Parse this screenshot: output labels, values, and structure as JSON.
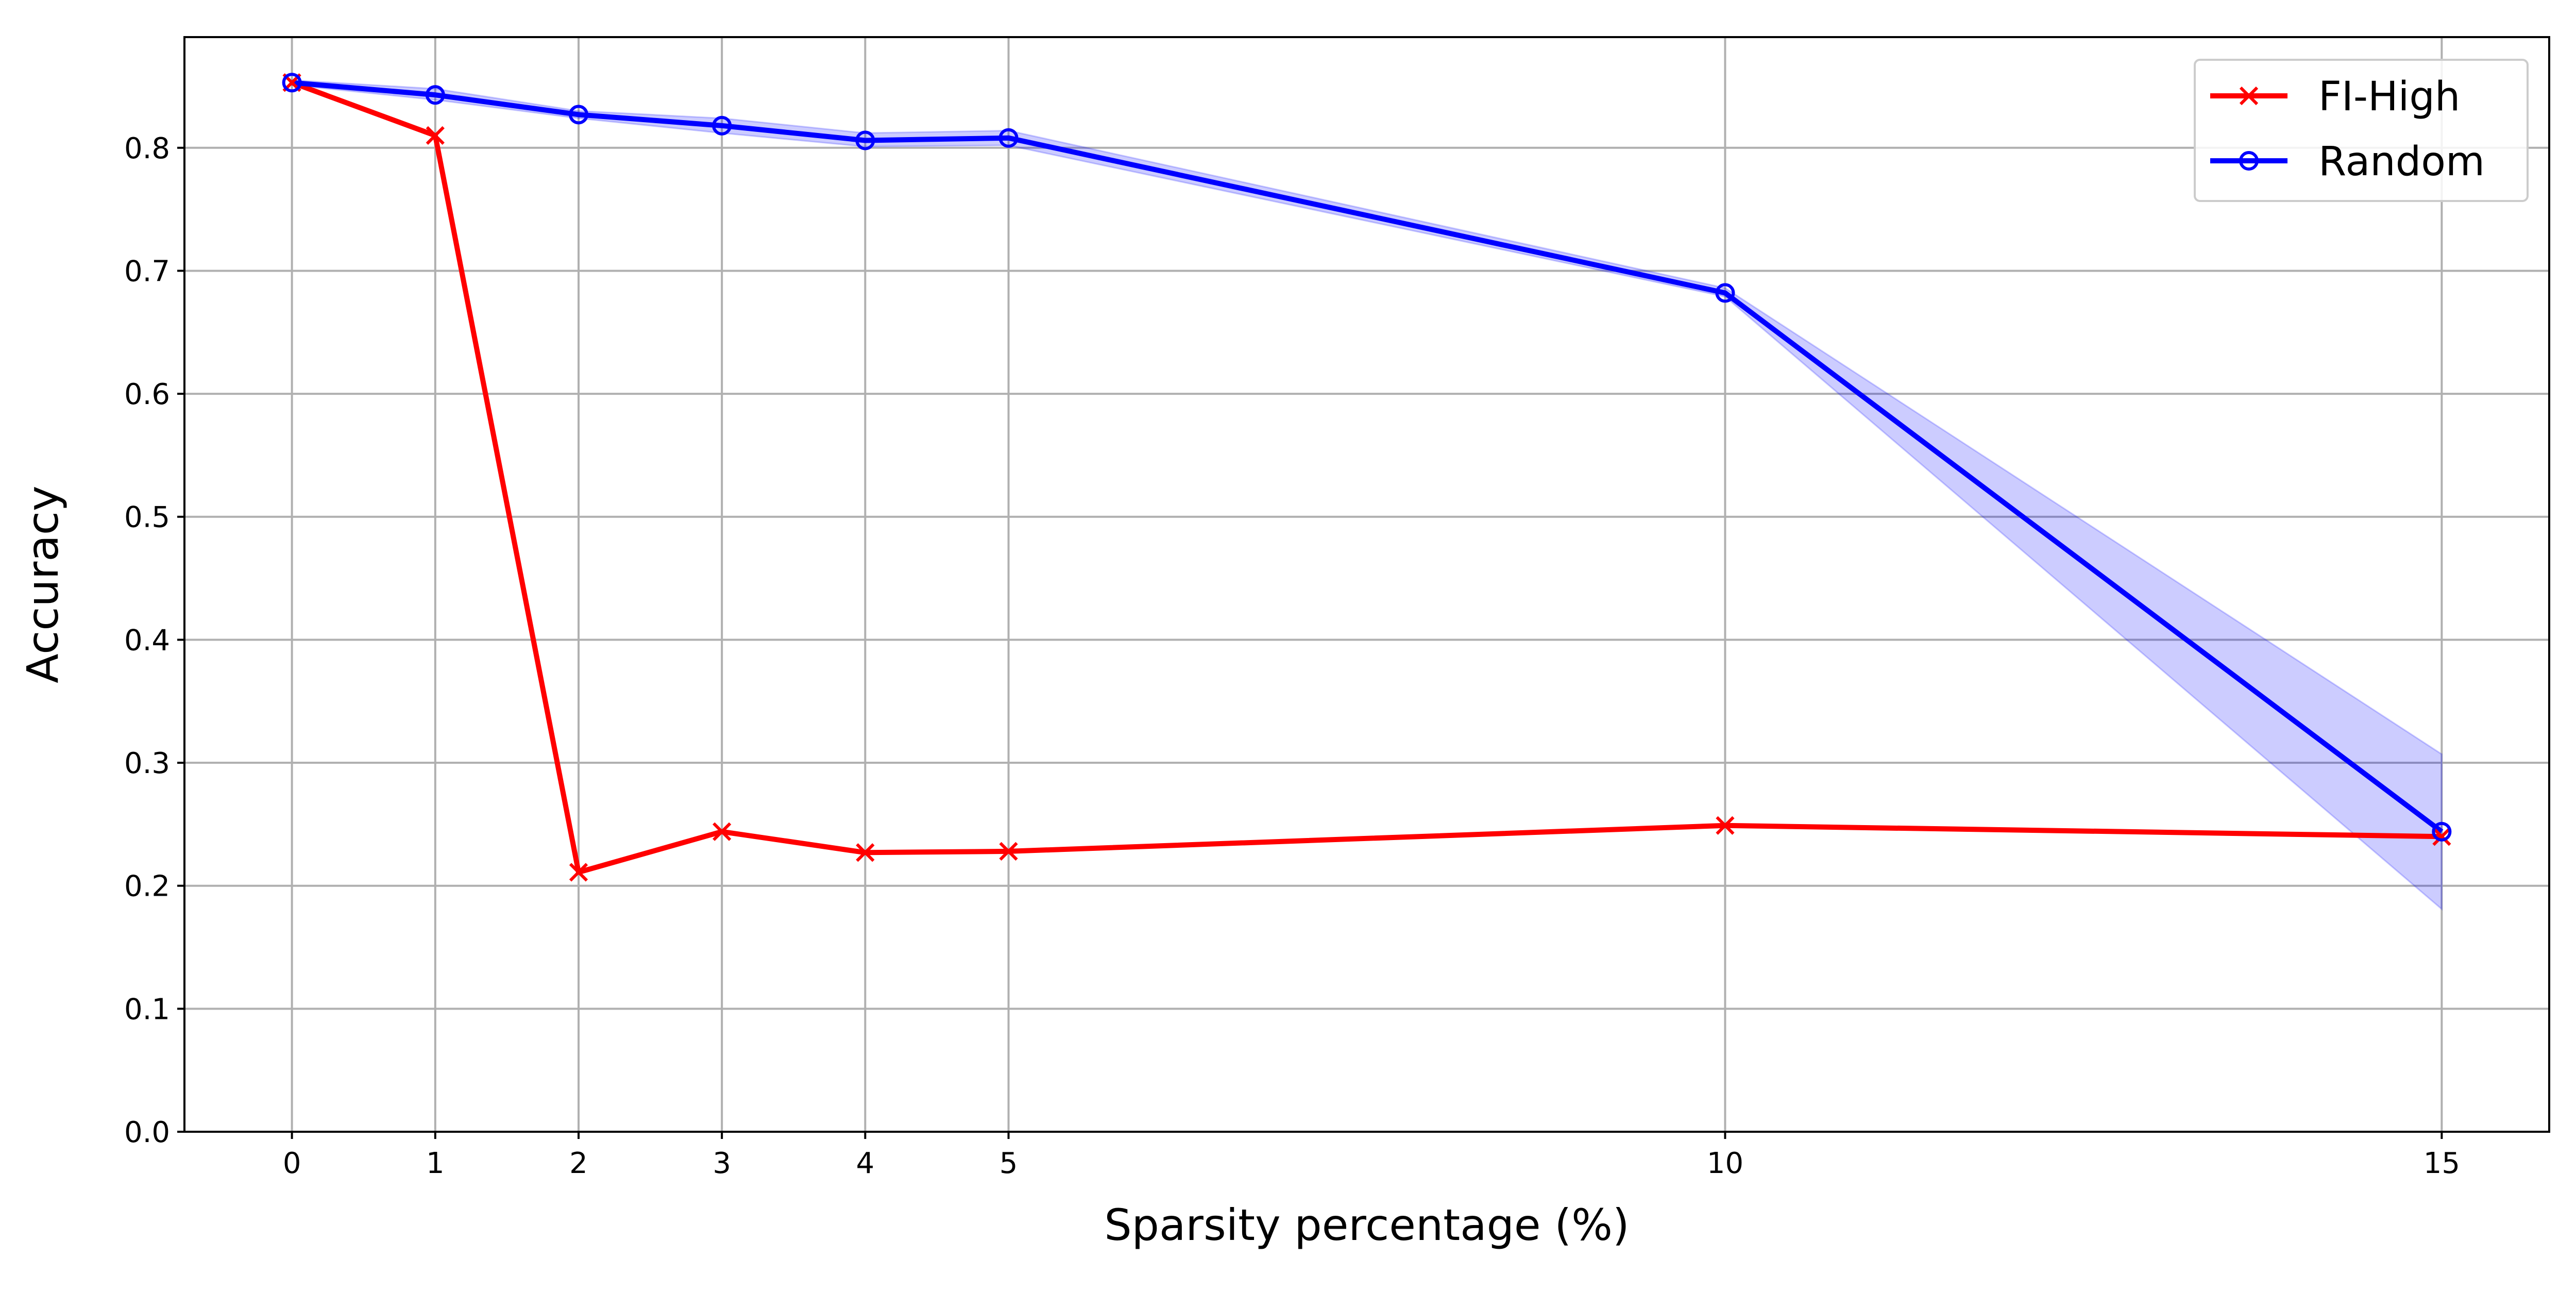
{
  "chart_data": {
    "type": "line",
    "title": "",
    "xlabel": "Sparsity percentage (%)",
    "ylabel": "Accuracy",
    "x": [
      0,
      1,
      2,
      3,
      4,
      5,
      10,
      15
    ],
    "xticks": [
      "0",
      "1",
      "2",
      "3",
      "4",
      "5",
      "10",
      "15"
    ],
    "xlim": [
      -0.75,
      15.75
    ],
    "ylim": [
      0.0,
      0.89
    ],
    "yticks": [
      "0.0",
      "0.1",
      "0.2",
      "0.3",
      "0.4",
      "0.5",
      "0.6",
      "0.7",
      "0.8"
    ],
    "grid": true,
    "legend_position": "top-right",
    "series": [
      {
        "name": "FI-High",
        "color": "#ff0000",
        "marker": "x",
        "values": [
          0.853,
          0.81,
          0.211,
          0.244,
          0.227,
          0.228,
          0.249,
          0.24
        ]
      },
      {
        "name": "Random",
        "color": "#0000ff",
        "marker": "circle",
        "values": [
          0.853,
          0.843,
          0.827,
          0.818,
          0.806,
          0.808,
          0.682,
          0.244
        ],
        "band_lower": [
          0.851,
          0.839,
          0.824,
          0.812,
          0.801,
          0.802,
          0.679,
          0.181
        ],
        "band_upper": [
          0.855,
          0.848,
          0.83,
          0.824,
          0.812,
          0.814,
          0.686,
          0.307
        ],
        "band_color": "#0000ff"
      }
    ]
  }
}
